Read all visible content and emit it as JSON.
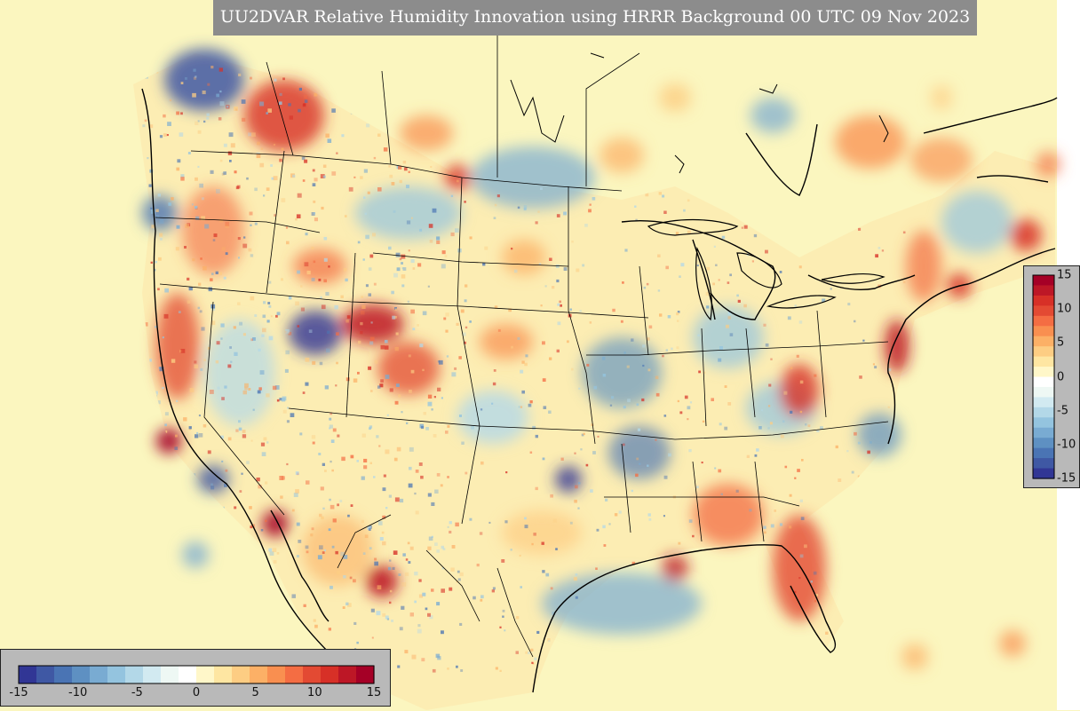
{
  "title": "UU2DVAR Relative Humidity Innovation using HRRR Background 00 UTC 09 Nov 2023",
  "colorbar": {
    "min": -15,
    "max": 15,
    "vertical_ticks": [
      "15",
      "10",
      "5",
      "0",
      "-5",
      "-10",
      "-15"
    ],
    "horizontal_ticks": [
      "-15",
      "-10",
      "-5",
      "0",
      "5",
      "10",
      "15"
    ],
    "colors": [
      "#313695",
      "#3f58a4",
      "#4a74b4",
      "#5e90c2",
      "#79abd2",
      "#94c4df",
      "#b3d8e8",
      "#d2eaf1",
      "#eef8f4",
      "#ffffff",
      "#fff7c9",
      "#fee6a2",
      "#fdcd83",
      "#fcb066",
      "#f98f50",
      "#f46d43",
      "#e34a33",
      "#d73027",
      "#bd1726",
      "#a50026"
    ]
  },
  "map": {
    "background_color": "#fbf6bf",
    "projection": "Lambert conformal",
    "region": "CONUS and surrounding areas"
  }
}
